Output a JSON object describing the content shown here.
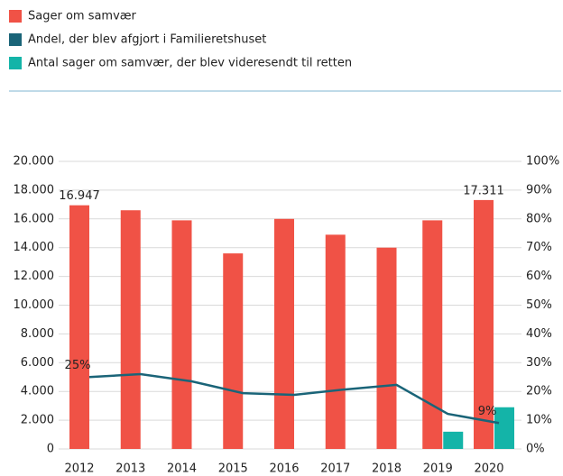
{
  "chart_data": {
    "type": "bar",
    "categories": [
      "2012",
      "2013",
      "2014",
      "2015",
      "2016",
      "2017",
      "2018",
      "2019",
      "2020"
    ],
    "series": [
      {
        "name": "Sager om samvær",
        "color": "#f05246",
        "type": "bar",
        "values": [
          16947,
          16600,
          15900,
          13600,
          16000,
          14900,
          14000,
          15900,
          17311
        ],
        "value_labels": [
          "16.947",
          null,
          null,
          null,
          null,
          null,
          null,
          null,
          "17.311"
        ]
      },
      {
        "name": "Andel, der blev afgjort i Familieretshuset",
        "color": "#1a6478",
        "type": "line",
        "axis": "y2",
        "values": [
          25,
          26,
          23.5,
          19.4,
          18.8,
          20.7,
          22.3,
          12.2,
          9
        ],
        "value_labels": [
          "25%",
          null,
          null,
          null,
          null,
          null,
          null,
          null,
          "9%"
        ]
      },
      {
        "name": "Antal sager om samvær, der blev videresendt til retten",
        "color": "#14b4a8",
        "type": "bar",
        "values": [
          null,
          null,
          null,
          null,
          null,
          null,
          null,
          1200,
          2900
        ]
      }
    ],
    "ylim": [
      0,
      20000
    ],
    "yticks": [
      0,
      {
        "value": 2000,
        "label": "2.000"
      },
      {
        "value": 4000,
        "label": "4.000"
      },
      {
        "value": 6000,
        "label": "6.000"
      },
      {
        "value": 8000,
        "label": "8.000"
      },
      {
        "value": 10000,
        "label": "10.000"
      },
      {
        "value": 12000,
        "label": "12.000"
      },
      {
        "value": 14000,
        "label": "14.000"
      },
      {
        "value": 16000,
        "label": "16.000"
      },
      {
        "value": 18000,
        "label": "18.000"
      },
      {
        "value": 20000,
        "label": "20.000"
      }
    ],
    "y2lim": [
      0,
      100
    ],
    "y2ticks": [
      {
        "value": 0,
        "label": "0%"
      },
      {
        "value": 10,
        "label": "10%"
      },
      {
        "value": 20,
        "label": "20%"
      },
      {
        "value": 30,
        "label": "30%"
      },
      {
        "value": 40,
        "label": "40%"
      },
      {
        "value": 50,
        "label": "50%"
      },
      {
        "value": 60,
        "label": "60%"
      },
      {
        "value": 70,
        "label": "70%"
      },
      {
        "value": 80,
        "label": "80%"
      },
      {
        "value": 90,
        "label": "90%"
      },
      {
        "value": 100,
        "label": "100%"
      }
    ],
    "grid": true,
    "legend": "top"
  }
}
